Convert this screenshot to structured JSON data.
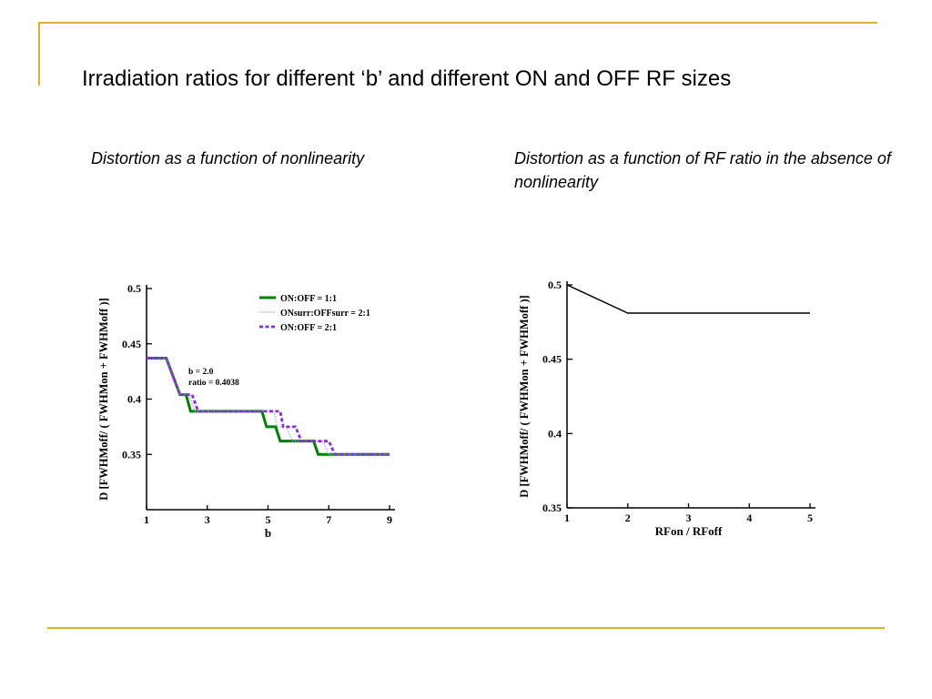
{
  "slide": {
    "title": "Irradiation ratios for different ‘b’ and different ON and OFF RF sizes",
    "subtitle_left": "Distortion as a function of nonlinearity",
    "subtitle_right": "Distortion as a function of RF ratio in the absence of nonlinearity",
    "accent_color": "#E0B02F"
  },
  "chart_data": [
    {
      "type": "line",
      "title": "",
      "xlabel": "b",
      "ylabel": "D [FWHMoff/ ( FWHMon + FWHMoff )]",
      "xlim": [
        1,
        9
      ],
      "ylim": [
        0.3,
        0.5
      ],
      "xticks": [
        "1",
        "3",
        "5",
        "7",
        "9"
      ],
      "yticks": [
        "0.35",
        "0.4",
        "0.45",
        "0.5"
      ],
      "legend_position": "top-right",
      "annotation": [
        "b = 2.0",
        "ratio = 0.4038"
      ],
      "series": [
        {
          "name": "ON:OFF = 1:1",
          "color": "#008000",
          "style": "solid",
          "x": [
            1,
            1.65,
            2.1,
            2.3,
            2.45,
            4.8,
            4.95,
            5.25,
            5.4,
            6.5,
            6.65,
            7.1,
            9
          ],
          "y": [
            0.437,
            0.437,
            0.404,
            0.404,
            0.389,
            0.389,
            0.375,
            0.375,
            0.362,
            0.362,
            0.35,
            0.35,
            0.35
          ]
        },
        {
          "name": "ONsurr:OFFsurr = 2:1",
          "color": "#A0A0E8",
          "style": "dotted",
          "x": [
            1,
            1.65,
            2.1,
            2.4,
            2.6,
            5.2,
            5.3,
            5.6,
            5.8,
            6.8,
            7.0,
            9
          ],
          "y": [
            0.437,
            0.437,
            0.404,
            0.404,
            0.389,
            0.389,
            0.375,
            0.375,
            0.362,
            0.362,
            0.35,
            0.35
          ]
        },
        {
          "name": "ON:OFF = 2:1",
          "color": "#8A2BE2",
          "style": "dashed",
          "x": [
            1,
            1.65,
            2.1,
            2.5,
            2.7,
            5.4,
            5.5,
            5.9,
            6.1,
            7.0,
            7.2,
            9
          ],
          "y": [
            0.437,
            0.437,
            0.404,
            0.404,
            0.389,
            0.389,
            0.375,
            0.375,
            0.362,
            0.362,
            0.35,
            0.35
          ]
        }
      ]
    },
    {
      "type": "line",
      "title": "",
      "xlabel": "RFon / RFoff",
      "ylabel": "D [FWHMoff/ ( FWHMon + FWHMoff )]",
      "xlim": [
        1,
        5
      ],
      "ylim": [
        0.35,
        0.5
      ],
      "xticks": [
        "1",
        "2",
        "3",
        "4",
        "5"
      ],
      "yticks": [
        "0.35",
        "0.4",
        "0.45",
        "0.5"
      ],
      "series": [
        {
          "color": "#000000",
          "style": "solid",
          "x": [
            1,
            2,
            3,
            4,
            5
          ],
          "y": [
            0.5,
            0.481,
            0.481,
            0.481,
            0.481
          ]
        }
      ]
    }
  ]
}
